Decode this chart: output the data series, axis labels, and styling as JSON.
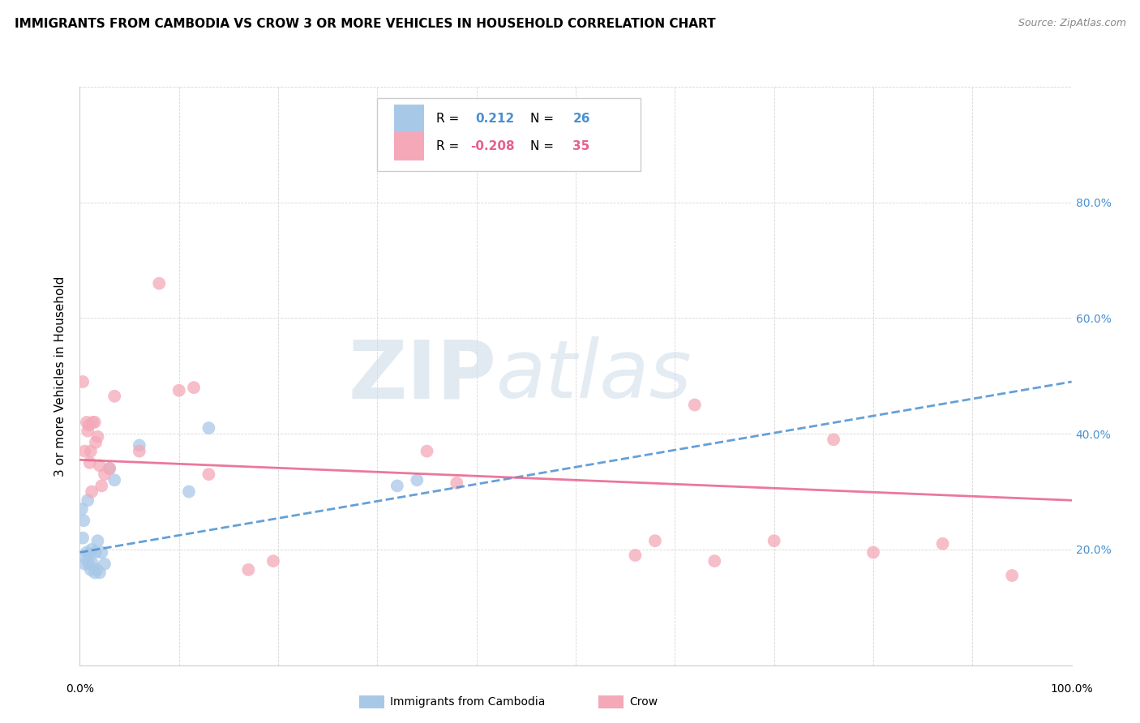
{
  "title": "IMMIGRANTS FROM CAMBODIA VS CROW 3 OR MORE VEHICLES IN HOUSEHOLD CORRELATION CHART",
  "source": "Source: ZipAtlas.com",
  "ylabel": "3 or more Vehicles in Household",
  "xlim": [
    0,
    1.0
  ],
  "ylim": [
    0,
    1.0
  ],
  "color_blue": "#a8c8e8",
  "color_pink": "#f4a8b8",
  "line_color_blue": "#4a90d0",
  "line_color_pink": "#e8608a",
  "watermark_zip": "ZIP",
  "watermark_atlas": "atlas",
  "blue_r": "0.212",
  "blue_n": "26",
  "pink_r": "-0.208",
  "pink_n": "35",
  "blue_points_x": [
    0.002,
    0.003,
    0.004,
    0.005,
    0.006,
    0.007,
    0.008,
    0.009,
    0.01,
    0.011,
    0.012,
    0.013,
    0.015,
    0.016,
    0.017,
    0.018,
    0.02,
    0.022,
    0.025,
    0.03,
    0.035,
    0.06,
    0.11,
    0.13,
    0.32,
    0.34
  ],
  "blue_points_y": [
    0.27,
    0.22,
    0.25,
    0.175,
    0.185,
    0.195,
    0.285,
    0.175,
    0.19,
    0.165,
    0.2,
    0.175,
    0.16,
    0.195,
    0.165,
    0.215,
    0.16,
    0.195,
    0.175,
    0.34,
    0.32,
    0.38,
    0.3,
    0.41,
    0.31,
    0.32
  ],
  "pink_points_x": [
    0.003,
    0.005,
    0.007,
    0.008,
    0.009,
    0.01,
    0.011,
    0.012,
    0.013,
    0.015,
    0.016,
    0.018,
    0.02,
    0.022,
    0.025,
    0.03,
    0.035,
    0.06,
    0.08,
    0.1,
    0.115,
    0.13,
    0.17,
    0.195,
    0.35,
    0.38,
    0.56,
    0.58,
    0.62,
    0.64,
    0.7,
    0.76,
    0.8,
    0.87,
    0.94
  ],
  "pink_points_y": [
    0.49,
    0.37,
    0.42,
    0.405,
    0.415,
    0.35,
    0.37,
    0.3,
    0.42,
    0.42,
    0.385,
    0.395,
    0.345,
    0.31,
    0.33,
    0.34,
    0.465,
    0.37,
    0.66,
    0.475,
    0.48,
    0.33,
    0.165,
    0.18,
    0.37,
    0.315,
    0.19,
    0.215,
    0.45,
    0.18,
    0.215,
    0.39,
    0.195,
    0.21,
    0.155
  ],
  "blue_line_x": [
    0.0,
    1.0
  ],
  "blue_line_y": [
    0.195,
    0.49
  ],
  "pink_line_x": [
    0.0,
    1.0
  ],
  "pink_line_y": [
    0.355,
    0.285
  ]
}
